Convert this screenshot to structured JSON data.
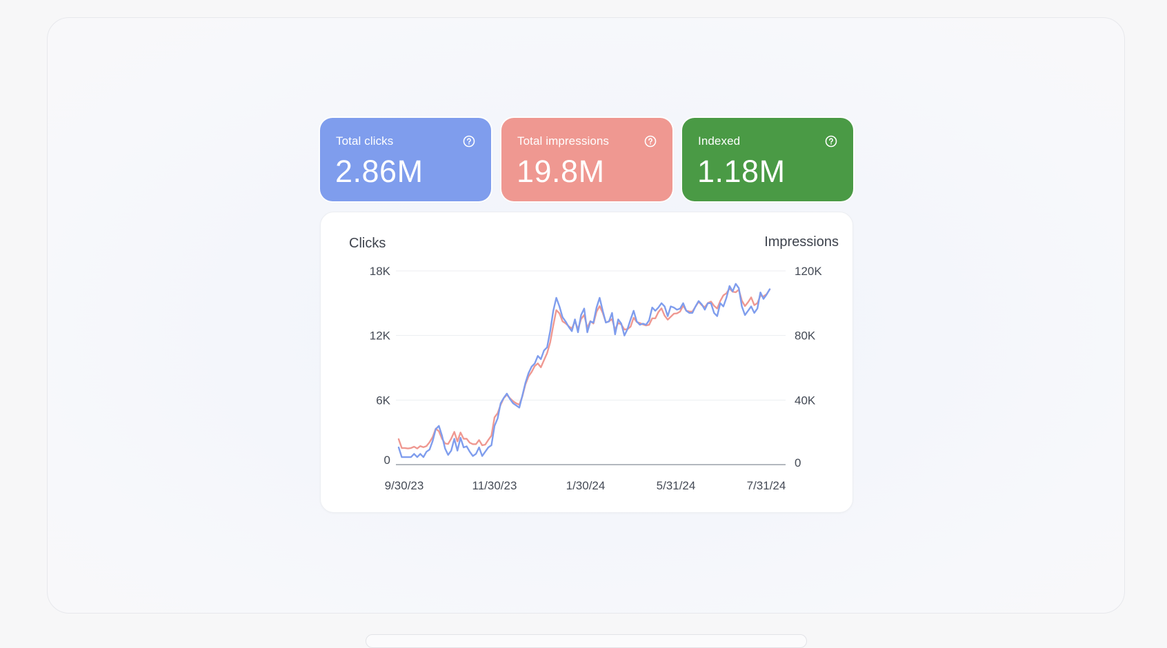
{
  "stats": {
    "clicks": {
      "label": "Total clicks",
      "value": "2.86M",
      "color": "#7f9ded"
    },
    "impressions": {
      "label": "Total impressions",
      "value": "19.8M",
      "color": "#ef9891"
    },
    "indexed": {
      "label": "Indexed",
      "value": "1.18M",
      "color": "#4a9a45"
    },
    "help_icon": "question-circle-icon"
  },
  "chart_data": {
    "type": "line",
    "left_axis_title": "Clicks",
    "right_axis_title": "Impressions",
    "left_ticks": [
      "18K",
      "12K",
      "6K",
      "0"
    ],
    "right_ticks": [
      "120K",
      "80K",
      "40K",
      "0"
    ],
    "x_ticks": [
      "9/30/23",
      "11/30/23",
      "1/30/24",
      "5/31/24",
      "7/31/24"
    ],
    "ylim_left": [
      0,
      18000
    ],
    "ylim_right": [
      0,
      120000
    ],
    "grid": true,
    "colors": {
      "clicks": "#7f9ded",
      "impressions": "#ef9891"
    },
    "series": [
      {
        "name": "Clicks",
        "axis": "left",
        "values": [
          1600,
          700,
          700,
          700,
          700,
          1000,
          700,
          1000,
          700,
          1200,
          1400,
          2200,
          3300,
          3600,
          2700,
          1500,
          900,
          1300,
          2400,
          1300,
          2500,
          1600,
          1700,
          1200,
          800,
          1000,
          1600,
          800,
          1200,
          1600,
          1800,
          3600,
          4300,
          5700,
          6200,
          6600,
          6100,
          5700,
          5500,
          5300,
          6400,
          7600,
          8500,
          9100,
          9400,
          10100,
          9800,
          10600,
          10900,
          12400,
          14300,
          15500,
          14700,
          13700,
          13300,
          12800,
          12400,
          13500,
          12300,
          13900,
          14500,
          12300,
          13300,
          13200,
          14600,
          15500,
          14300,
          13200,
          13300,
          14100,
          12100,
          13500,
          13100,
          12000,
          12600,
          13500,
          14300,
          13300,
          13000,
          13100,
          13000,
          13400,
          14600,
          14300,
          14600,
          15000,
          14700,
          13800,
          14700,
          14600,
          14400,
          14500,
          15000,
          14300,
          14100,
          14100,
          14700,
          15200,
          14900,
          14400,
          15000,
          15000,
          14100,
          13800,
          15000,
          14700,
          15500,
          16600,
          16100,
          16800,
          16400,
          14700,
          13900,
          14300,
          14700,
          14100,
          14500,
          16000,
          15400,
          15800,
          16300
        ]
      },
      {
        "name": "Impressions",
        "axis": "right",
        "values": [
          15800,
          10300,
          10300,
          10000,
          10300,
          11100,
          10000,
          11500,
          10800,
          11500,
          13900,
          17100,
          22300,
          20700,
          16100,
          13100,
          12800,
          16100,
          20300,
          14400,
          19900,
          16000,
          16000,
          13600,
          12700,
          12700,
          15200,
          12000,
          12400,
          15300,
          18000,
          29300,
          31800,
          37100,
          41200,
          43300,
          41100,
          39300,
          38000,
          37100,
          42200,
          49700,
          54600,
          57400,
          61100,
          62700,
          60300,
          64700,
          69000,
          75700,
          86300,
          95700,
          93700,
          88800,
          87500,
          85700,
          84300,
          88700,
          83900,
          90200,
          92700,
          84700,
          88900,
          87400,
          94700,
          98200,
          94000,
          88200,
          88800,
          90200,
          83500,
          87800,
          86800,
          83700,
          83900,
          85500,
          91000,
          88400,
          87700,
          86800,
          86200,
          86600,
          90600,
          90600,
          94500,
          96800,
          92300,
          89800,
          91600,
          93500,
          93700,
          94800,
          98500,
          95300,
          94900,
          94800,
          97900,
          100900,
          98800,
          97500,
          100100,
          101000,
          98400,
          96700,
          101400,
          104900,
          106100,
          109100,
          107100,
          106800,
          108400,
          101600,
          98200,
          100600,
          103600,
          98800,
          100000,
          104700,
          104200,
          105600,
          108500
        ]
      }
    ]
  }
}
